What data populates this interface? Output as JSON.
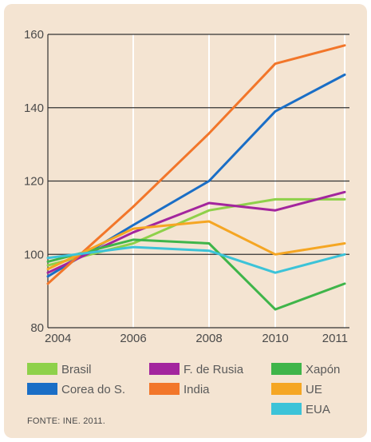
{
  "chart_data": {
    "type": "line",
    "x": [
      "2004",
      "2006",
      "2008",
      "2010",
      "2011"
    ],
    "ylim": [
      80,
      160
    ],
    "yticks": [
      80,
      100,
      120,
      140,
      160
    ],
    "grid": true,
    "series": [
      {
        "name": "Brasil",
        "color": "#8ed14a",
        "values": [
          97,
          103,
          112,
          115,
          115
        ]
      },
      {
        "name": "Corea do S.",
        "color": "#1a6ec6",
        "values": [
          94,
          108,
          120,
          139,
          149
        ]
      },
      {
        "name": "F. de Rusia",
        "color": "#a3259e",
        "values": [
          95,
          106,
          114,
          112,
          117
        ]
      },
      {
        "name": "India",
        "color": "#f2762a",
        "values": [
          92,
          113,
          133,
          152,
          157
        ]
      },
      {
        "name": "Xapón",
        "color": "#3fb54a",
        "values": [
          98,
          104,
          103,
          85,
          92
        ]
      },
      {
        "name": "UE",
        "color": "#f5a623",
        "values": [
          96,
          107,
          109,
          100,
          103
        ]
      },
      {
        "name": "EUA",
        "color": "#3cc3d8",
        "values": [
          99,
          102,
          101,
          95,
          100
        ]
      }
    ],
    "legend_position": "bottom"
  },
  "source": "FONTE: INE. 2011."
}
